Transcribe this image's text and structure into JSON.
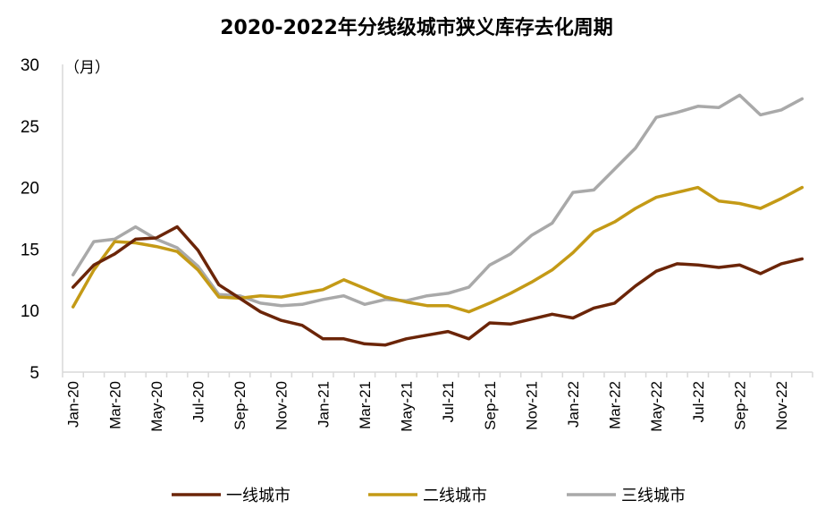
{
  "chart_data": {
    "type": "line",
    "title": "2020-2022年分线级城市狭义库存去化周期",
    "ylabel": "（月）",
    "xlabel": "",
    "ylim": [
      5,
      30
    ],
    "yticks": [
      5,
      10,
      15,
      20,
      25,
      30
    ],
    "grid": false,
    "legend_position": "bottom",
    "categories": [
      "Jan-20",
      "Feb-20",
      "Mar-20",
      "Apr-20",
      "May-20",
      "Jun-20",
      "Jul-20",
      "Aug-20",
      "Sep-20",
      "Oct-20",
      "Nov-20",
      "Dec-20",
      "Jan-21",
      "Feb-21",
      "Mar-21",
      "Apr-21",
      "May-21",
      "Jun-21",
      "Jul-21",
      "Aug-21",
      "Sep-21",
      "Oct-21",
      "Nov-21",
      "Dec-21",
      "Jan-22",
      "Feb-22",
      "Mar-22",
      "Apr-22",
      "May-22",
      "Jun-22",
      "Jul-22",
      "Aug-22",
      "Sep-22",
      "Oct-22",
      "Nov-22",
      "Dec-22"
    ],
    "tick_labels": [
      "Jan-20",
      "Mar-20",
      "May-20",
      "Jul-20",
      "Sep-20",
      "Nov-20",
      "Jan-21",
      "Mar-21",
      "May-21",
      "Jul-21",
      "Sep-21",
      "Nov-21",
      "Jan-22",
      "Mar-22",
      "May-22",
      "Jul-22",
      "Sep-22",
      "Nov-22"
    ],
    "series": [
      {
        "name": "一线城市",
        "color": "#6b2508",
        "values": [
          11.9,
          13.7,
          14.6,
          15.8,
          15.9,
          16.8,
          14.9,
          12.1,
          11.0,
          9.9,
          9.2,
          8.8,
          7.7,
          7.7,
          7.3,
          7.2,
          7.7,
          8.0,
          8.3,
          7.7,
          9.0,
          8.9,
          9.3,
          9.7,
          9.4,
          10.2,
          10.6,
          12.0,
          13.2,
          13.8,
          13.7,
          13.5,
          13.7,
          13.0,
          13.8,
          14.2
        ]
      },
      {
        "name": "二线城市",
        "color": "#c49a16",
        "values": [
          10.3,
          13.3,
          15.6,
          15.5,
          15.2,
          14.8,
          13.3,
          11.1,
          11.0,
          11.2,
          11.1,
          11.4,
          11.7,
          12.5,
          11.8,
          11.1,
          10.7,
          10.4,
          10.4,
          9.9,
          10.6,
          11.4,
          12.3,
          13.3,
          14.7,
          16.4,
          17.2,
          18.3,
          19.2,
          19.6,
          20.0,
          18.9,
          18.7,
          18.3,
          19.1,
          20.0
        ]
      },
      {
        "name": "三线城市",
        "color": "#a9a9a9",
        "values": [
          12.9,
          15.6,
          15.8,
          16.8,
          15.8,
          15.1,
          13.6,
          11.3,
          11.2,
          10.6,
          10.4,
          10.5,
          10.9,
          11.2,
          10.5,
          10.9,
          10.8,
          11.2,
          11.4,
          11.9,
          13.7,
          14.6,
          16.1,
          17.1,
          19.6,
          19.8,
          21.5,
          23.2,
          25.7,
          26.1,
          26.6,
          26.5,
          27.5,
          25.9,
          26.3,
          27.2
        ]
      }
    ]
  }
}
